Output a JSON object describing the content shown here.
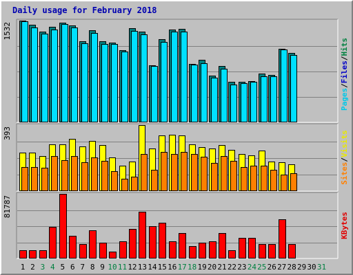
{
  "chart_data": {
    "type": "bar",
    "title": "Daily usage for February 2018",
    "days": [
      "1",
      "2",
      "3",
      "4",
      "5",
      "6",
      "7",
      "8",
      "9",
      "10",
      "11",
      "12",
      "13",
      "14",
      "15",
      "16",
      "17",
      "18",
      "19",
      "20",
      "21",
      "22",
      "23",
      "24",
      "25",
      "26",
      "27",
      "28",
      "29",
      "30",
      "31"
    ],
    "weekend_days": [
      "3",
      "4",
      "10",
      "11",
      "17",
      "18",
      "24",
      "25",
      "31"
    ],
    "panels": [
      {
        "id": "top",
        "max_label": "1532",
        "max": 1532,
        "side_label": [
          "Pages",
          "/",
          "Files",
          "/",
          "Hits"
        ],
        "side_colors": [
          "#00c8e8",
          "#000000",
          "#0000c8",
          "#000000",
          "#008040"
        ],
        "series": [
          {
            "name": "Hits",
            "color": "#008080",
            "values": [
              1528,
              1465,
              1367,
              1436,
              1502,
              1464,
              1222,
              1383,
              1219,
              1203,
              1091,
              1414,
              1365,
              863,
              1251,
              1393,
              1404,
              884,
              944,
              708,
              852,
              607,
              613,
              624,
              738,
              713,
              1108,
              1043
            ]
          },
          {
            "name": "Files",
            "color": "#00e0ff",
            "values": [
              1521,
              1424,
              1334,
              1400,
              1479,
              1431,
              1190,
              1347,
              1183,
              1180,
              1065,
              1377,
              1330,
              847,
              1214,
              1368,
              1366,
              866,
              895,
              671,
              811,
              572,
              589,
              613,
              696,
              693,
              1094,
              1019
            ]
          }
        ]
      },
      {
        "id": "mid",
        "max_label": "393",
        "max": 393,
        "side_label": [
          "Sites",
          "/",
          "Visits"
        ],
        "side_colors": [
          "#ff8000",
          "#000000",
          "#e8e800"
        ],
        "series": [
          {
            "name": "Visits",
            "color": "#ffff00",
            "values": [
              228,
              230,
              208,
              280,
              278,
              310,
              265,
              298,
              275,
              200,
              153,
              175,
              393,
              252,
              332,
              335,
              333,
              278,
              262,
              252,
              275,
              247,
              223,
              212,
              240,
              178,
              170,
              158
            ]
          },
          {
            "name": "Sites",
            "color": "#ff8000",
            "values": [
              145,
              145,
              140,
              208,
              185,
              208,
              170,
              202,
              182,
              117,
              72,
              88,
              222,
              125,
              235,
              222,
              235,
              220,
              205,
              168,
              208,
              180,
              145,
              150,
              150,
              128,
              100,
              108
            ]
          }
        ]
      },
      {
        "id": "bottom",
        "max_label": "81787",
        "max": 81787,
        "side_label": [
          "KBytes"
        ],
        "side_colors": [
          "#e00000"
        ],
        "series": [
          {
            "name": "KBytes",
            "color": "#ff0000",
            "values": [
              10500,
              10500,
              10800,
              40000,
              81700,
              28500,
              18300,
              36000,
              20000,
              8800,
              21400,
              37000,
              59000,
              41000,
              45000,
              21500,
              32500,
              15600,
              19800,
              22000,
              32000,
              10600,
              26000,
              25700,
              18100,
              18100,
              50000,
              18100
            ]
          }
        ]
      }
    ]
  }
}
